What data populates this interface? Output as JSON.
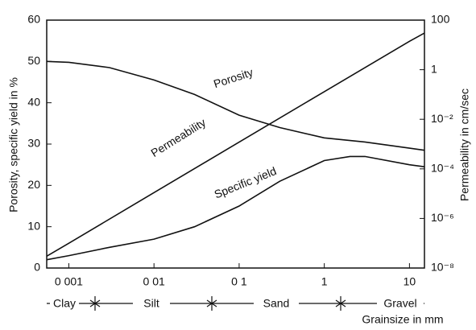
{
  "chart_data": {
    "type": "line",
    "x_label": "Grainsize in mm",
    "y_label": "Porosity, specific yield in %",
    "y2_label": "Permeability in cm/sec",
    "xscale": "log",
    "y2scale": "log",
    "xlim": [
      0.00055,
      15
    ],
    "xticks": [
      {
        "value": 0.001,
        "label": "0 001"
      },
      {
        "value": 0.01,
        "label": "0 01"
      },
      {
        "value": 0.1,
        "label": "0 1"
      },
      1,
      10
    ],
    "ylim": [
      0,
      60
    ],
    "yticks": [
      0,
      10,
      20,
      30,
      40,
      50,
      60
    ],
    "y2lim": [
      1e-08,
      100
    ],
    "y2ticks": [
      {
        "value": 1e-08,
        "label": "10⁻⁸"
      },
      {
        "value": 1e-06,
        "label": "10⁻⁶"
      },
      {
        "value": 0.0001,
        "label": "10⁻⁴"
      },
      {
        "value": 0.01,
        "label": "10⁻²"
      },
      1,
      100
    ],
    "classes": [
      "Clay",
      "Silt",
      "Sand",
      "Gravel"
    ],
    "series": [
      {
        "name": "Porosity",
        "color": "#111111",
        "x": [
          0.00055,
          0.001,
          0.003,
          0.01,
          0.03,
          0.1,
          0.3,
          1,
          3,
          10,
          15
        ],
        "values": [
          50,
          49.8,
          48.5,
          45.5,
          42,
          37,
          34,
          31.5,
          30.5,
          29,
          28.5
        ]
      },
      {
        "name": "Permeability",
        "color": "#111111",
        "axis": "y2",
        "x": [
          0.00055,
          0.001,
          0.01,
          0.1,
          1,
          10,
          15
        ],
        "values": [
          3e-08,
          1e-07,
          1.1e-05,
          0.0012,
          0.13,
          14,
          30
        ]
      },
      {
        "name": "Specific yield",
        "color": "#111111",
        "x": [
          0.00055,
          0.001,
          0.003,
          0.01,
          0.03,
          0.1,
          0.3,
          1,
          2,
          3,
          10,
          15
        ],
        "values": [
          2,
          3,
          5,
          7,
          10,
          15,
          21,
          26,
          27,
          27,
          25,
          24.5
        ]
      }
    ]
  }
}
